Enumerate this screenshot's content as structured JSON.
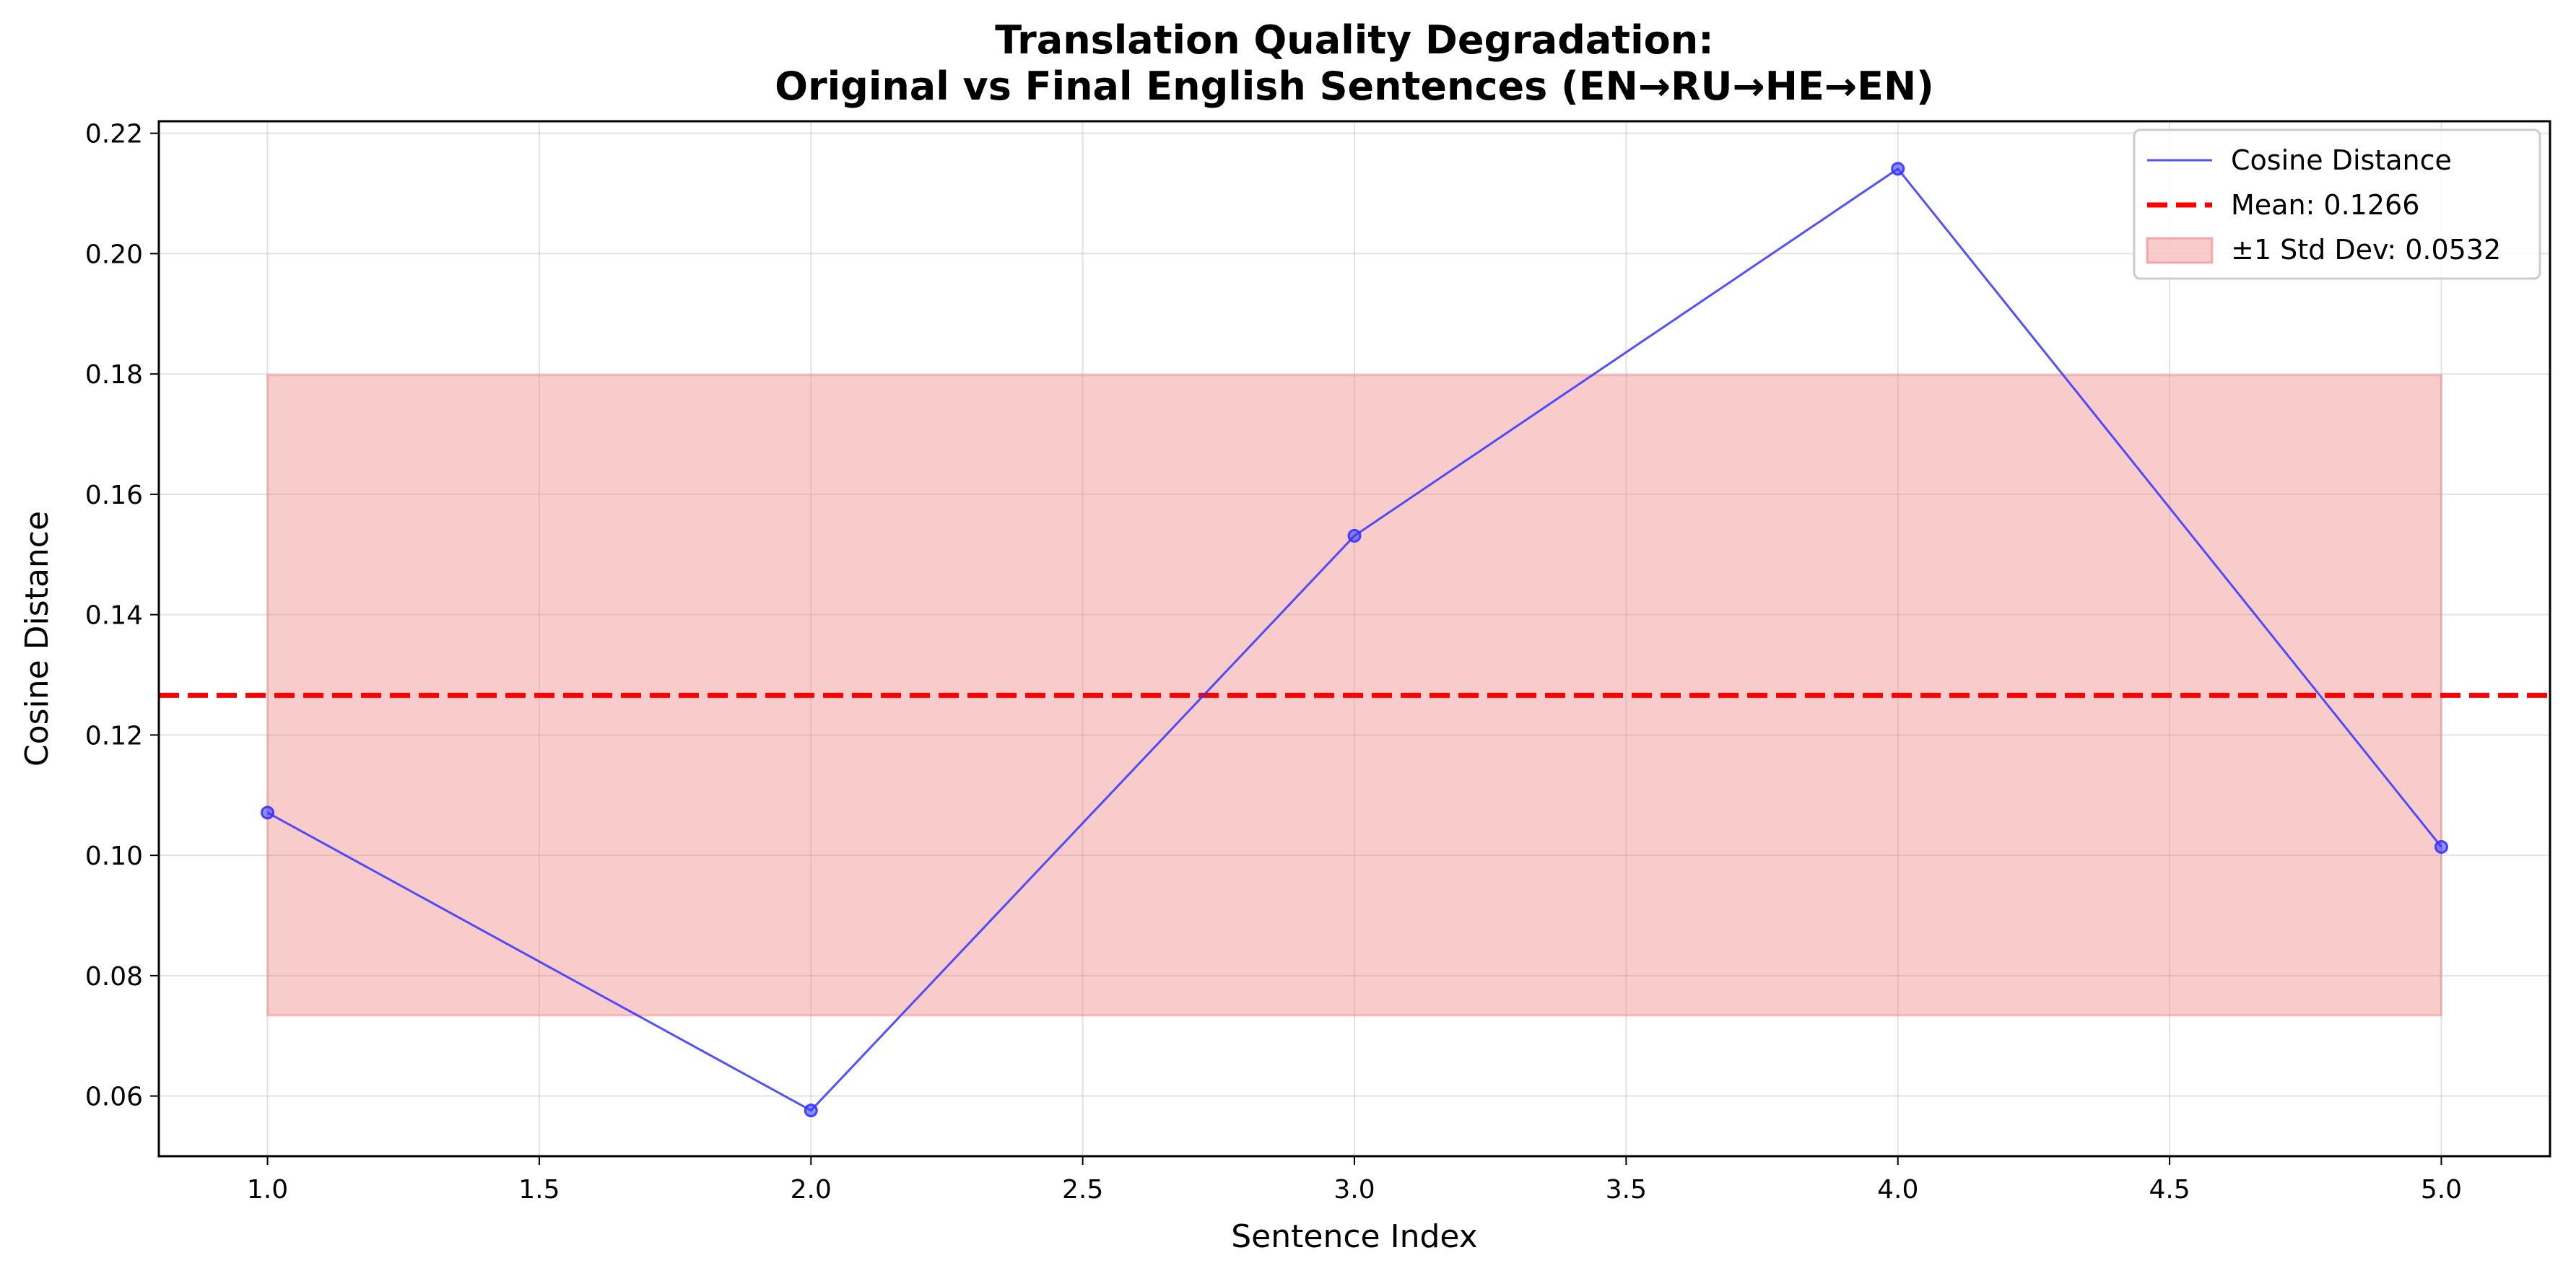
{
  "chart_data": {
    "type": "line",
    "title": "Translation Quality Degradation:",
    "subtitle": "Original vs Final English Sentences (EN→RU→HE→EN)",
    "xlabel": "Sentence Index",
    "ylabel": "Cosine Distance",
    "xlim": [
      0.8,
      5.2
    ],
    "ylim": [
      0.05,
      0.222
    ],
    "xticks": [
      1.0,
      1.5,
      2.0,
      2.5,
      3.0,
      3.5,
      4.0,
      4.5,
      5.0
    ],
    "xtick_labels": [
      "1.0",
      "1.5",
      "2.0",
      "2.5",
      "3.0",
      "3.5",
      "4.0",
      "4.5",
      "5.0"
    ],
    "yticks": [
      0.06,
      0.08,
      0.1,
      0.12,
      0.14,
      0.16,
      0.18,
      0.2,
      0.22
    ],
    "ytick_labels": [
      "0.06",
      "0.08",
      "0.10",
      "0.12",
      "0.14",
      "0.16",
      "0.18",
      "0.20",
      "0.22"
    ],
    "grid": true,
    "legend_position": "top-right",
    "series": [
      {
        "name": "Cosine Distance",
        "x": [
          1,
          2,
          3,
          4,
          5
        ],
        "y": [
          0.1071,
          0.0576,
          0.1531,
          0.2141,
          0.1014
        ],
        "color": "#3333ff"
      }
    ],
    "mean": {
      "label": "Mean: 0.1266",
      "value": 0.1266,
      "color": "#ff0000"
    },
    "std_band": {
      "label": "±1 Std Dev: 0.0532",
      "lower": 0.0734,
      "upper": 0.1798,
      "x_range": [
        1,
        5
      ],
      "color": "#f08080"
    }
  }
}
